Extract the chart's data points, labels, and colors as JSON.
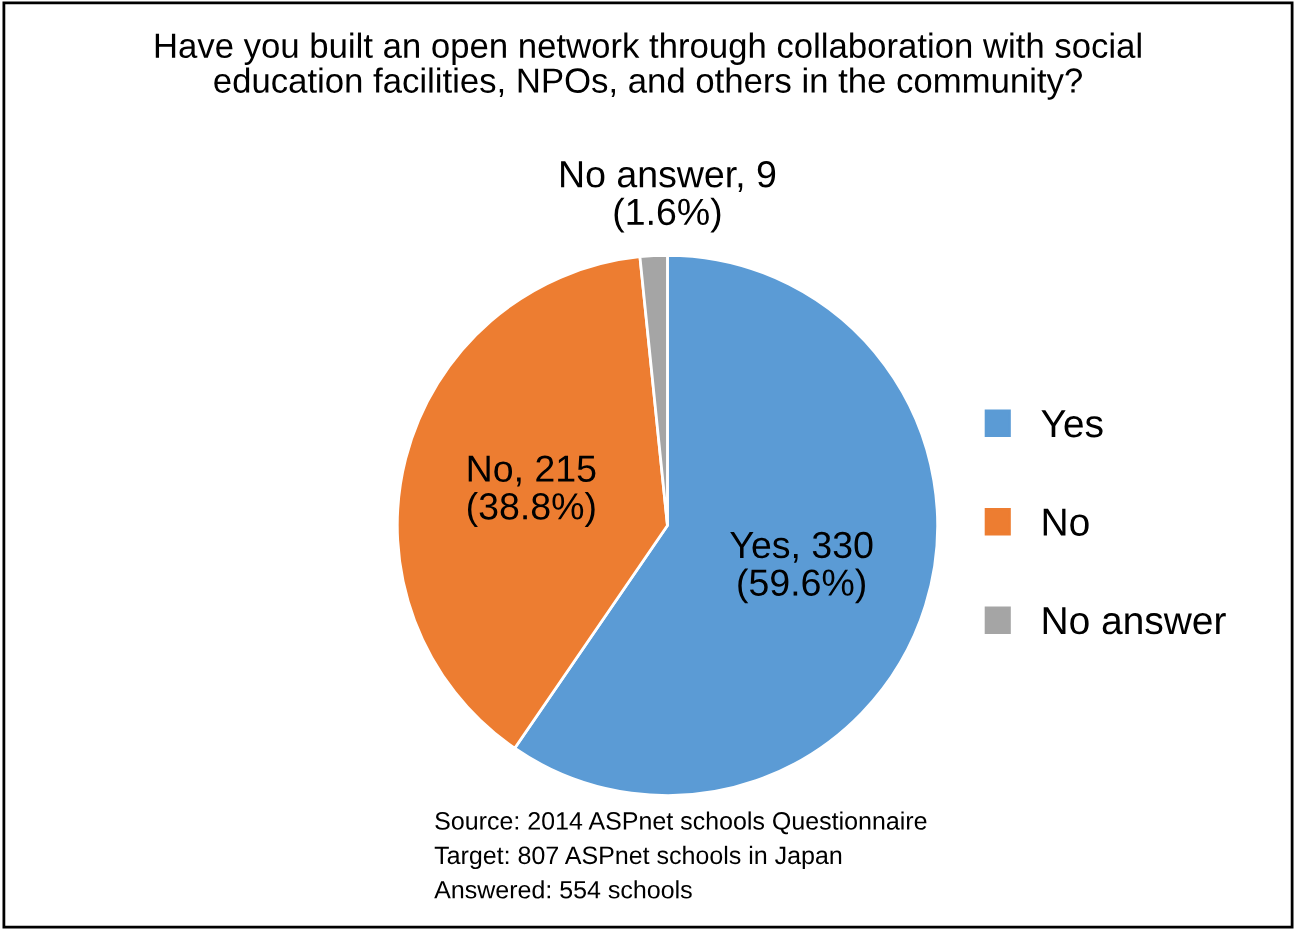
{
  "chart_data": {
    "type": "pie",
    "title": "Have you built an open network through collaboration with social\neducation facilities, NPOs, and others in the community?",
    "categories": [
      "Yes",
      "No",
      "No answer"
    ],
    "values": [
      330,
      215,
      9
    ],
    "colors": [
      "#5b9bd5",
      "#ed7d31",
      "#a5a5a5"
    ],
    "value_labels": [
      "Yes, 330\n(59.6%)",
      "No, 215\n(38.8%)",
      "No answer, 9\n(1.6%)"
    ],
    "legend": "right",
    "annotations": [
      "Source: 2014 ASPnet schools Questionnaire",
      "Target: 807 ASPnet schools in Japan",
      "Answered: 554 schools"
    ]
  }
}
